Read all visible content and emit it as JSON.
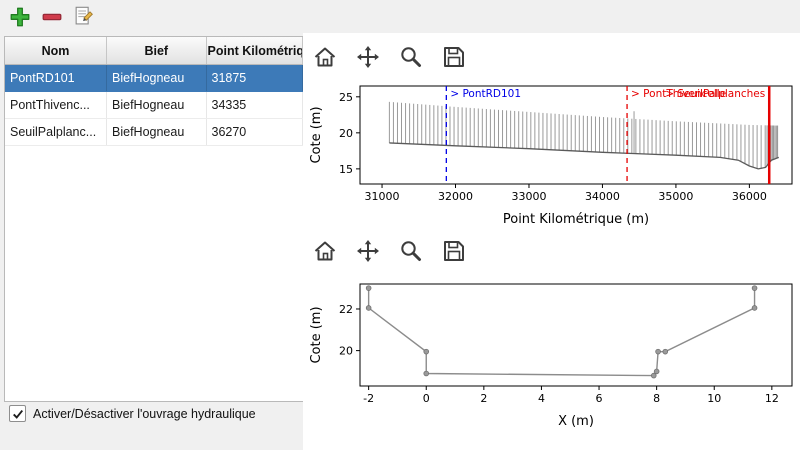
{
  "main_toolbar": {
    "icons": [
      "add-icon",
      "remove-icon",
      "edit-icon"
    ]
  },
  "mpl_toolbar": {
    "icons": [
      "home-icon",
      "pan-icon",
      "zoom-icon",
      "save-icon"
    ]
  },
  "table": {
    "columns": [
      "Nom",
      "Bief",
      "Point Kilométrique"
    ],
    "rows": [
      [
        "PontRD101",
        "BiefHogneau",
        "31875"
      ],
      [
        "PontThivenc...",
        "BiefHogneau",
        "34335"
      ],
      [
        "SeuilPalplanc...",
        "BiefHogneau",
        "36270"
      ]
    ],
    "selected_row": 0
  },
  "checkbox": {
    "label": "Activer/Désactiver l'ouvrage hydraulique",
    "checked": true
  },
  "colors": {
    "selection_bg": "#3d7ab8",
    "selection_fg": "#ffffff",
    "annotation_blue": "#0000e6",
    "annotation_red": "#e60000",
    "profile_line": "#5a5a5a",
    "hatch": "#9a9a9a",
    "section_line": "#8c8c8c",
    "marker": "#9a9a9a"
  },
  "chart_data": [
    {
      "type": "line",
      "xlabel": "Point Kilométrique (m)",
      "ylabel": "Cote (m)",
      "xlim": [
        30700,
        36580
      ],
      "ylim": [
        12.9,
        26.5
      ],
      "xticks": [
        31000,
        32000,
        33000,
        34000,
        35000,
        36000
      ],
      "yticks": [
        15,
        20,
        25
      ],
      "series": [
        {
          "name": "bottom_profile",
          "points": [
            [
              31100,
              18.6
            ],
            [
              32000,
              18.2
            ],
            [
              33000,
              17.8
            ],
            [
              34000,
              17.3
            ],
            [
              34500,
              17.1
            ],
            [
              35000,
              16.9
            ],
            [
              35600,
              16.6
            ],
            [
              35850,
              16.2
            ],
            [
              36000,
              15.4
            ],
            [
              36120,
              15.0
            ],
            [
              36220,
              15.2
            ],
            [
              36300,
              16.2
            ],
            [
              36400,
              16.6
            ]
          ]
        },
        {
          "name": "top_envelope",
          "points": [
            [
              31100,
              24.3
            ],
            [
              32000,
              23.6
            ],
            [
              33000,
              22.9
            ],
            [
              34000,
              22.2
            ],
            [
              34500,
              21.9
            ],
            [
              35000,
              21.6
            ],
            [
              35600,
              21.3
            ],
            [
              36000,
              21.1
            ],
            [
              36400,
              21.0
            ]
          ]
        }
      ],
      "hatch_step": 55,
      "hatch_dense": {
        "from": 36240,
        "to": 36400,
        "step": 18
      },
      "spikes": [
        [
          34430,
          23.0
        ]
      ],
      "annotations": [
        {
          "x": 31875,
          "label": "> PontRD101",
          "color_key": "annotation_blue",
          "dash": "5 4",
          "width": 1.3,
          "anchor": "start"
        },
        {
          "x": 34335,
          "label": "> PontThivencelle",
          "color_key": "annotation_red",
          "dash": "5 4",
          "width": 1.3,
          "anchor": "start"
        },
        {
          "x": 36270,
          "label": "> SeuilPalplanches",
          "color_key": "annotation_red",
          "dash": "",
          "width": 2.5,
          "anchor": "end"
        }
      ]
    },
    {
      "type": "line",
      "xlabel": "X (m)",
      "ylabel": "Cote (m)",
      "xlim": [
        -2.3,
        12.7
      ],
      "ylim": [
        18.3,
        23.2
      ],
      "xticks": [
        -2,
        0,
        2,
        4,
        6,
        8,
        10,
        12
      ],
      "yticks": [
        20,
        22
      ],
      "series": [
        {
          "name": "cross_section",
          "points": [
            [
              -2,
              23
            ],
            [
              -2,
              22.05
            ],
            [
              0,
              19.95
            ],
            [
              0,
              18.9
            ],
            [
              7.9,
              18.8
            ],
            [
              8,
              19.0
            ],
            [
              8.05,
              19.95
            ],
            [
              8.3,
              19.95
            ],
            [
              11.4,
              22.05
            ],
            [
              11.4,
              23
            ]
          ]
        }
      ],
      "markers": true
    }
  ]
}
